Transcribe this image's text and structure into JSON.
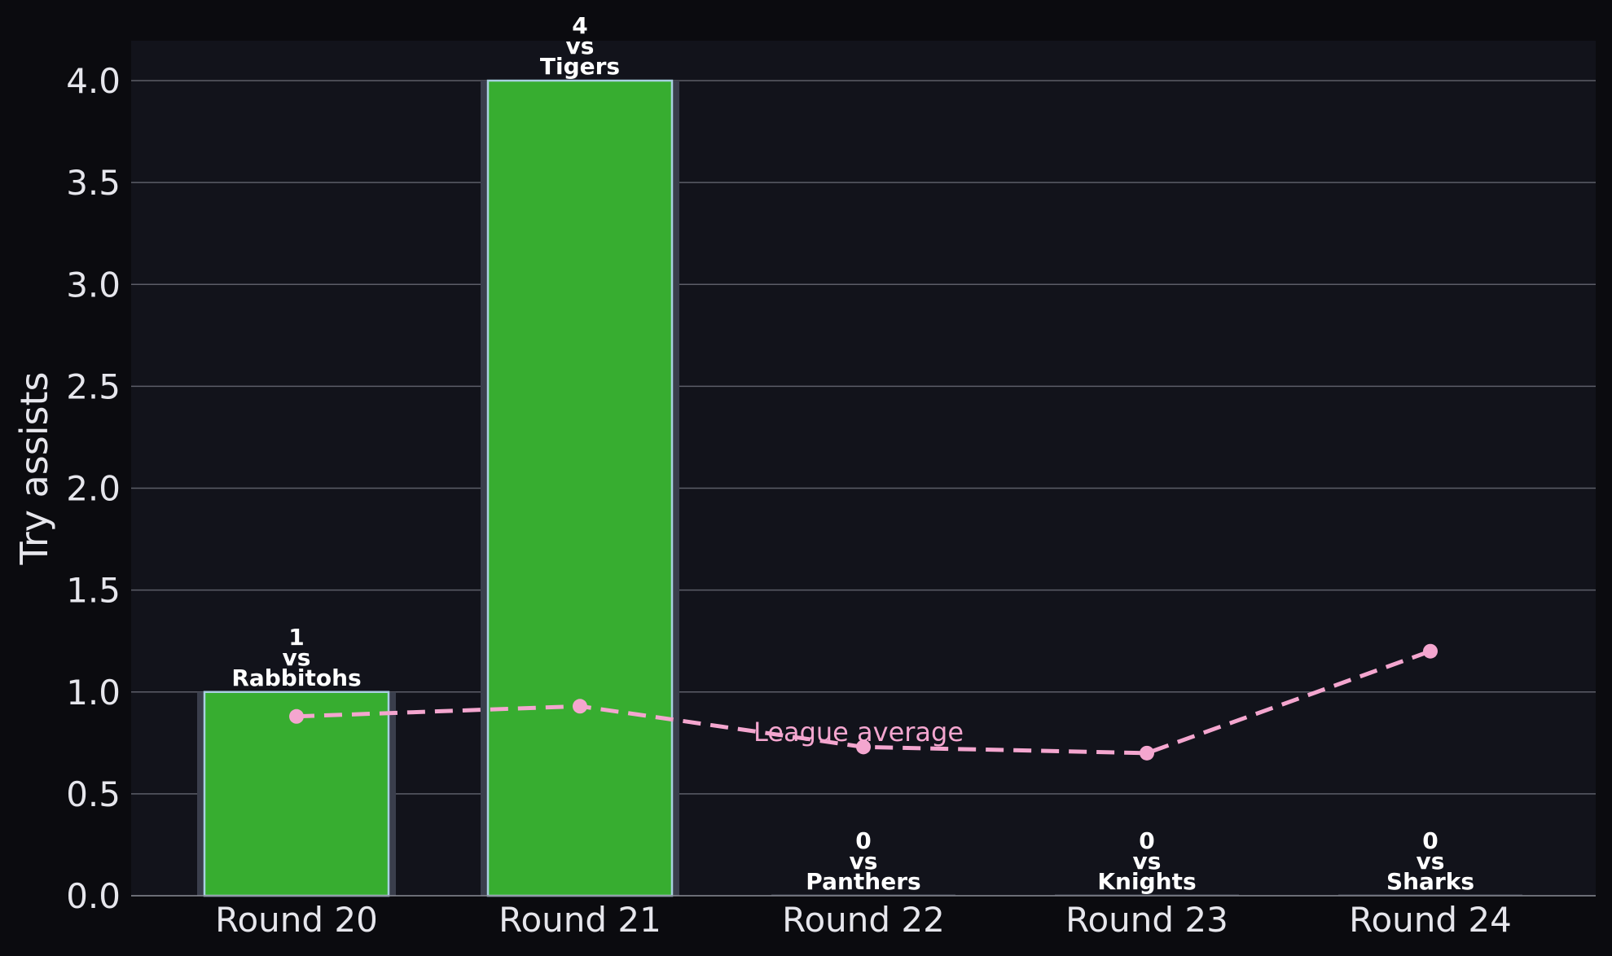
{
  "chart_data": {
    "type": "bar",
    "categories": [
      "Round 20",
      "Round 21",
      "Round 22",
      "Round 23",
      "Round 24"
    ],
    "values": [
      1,
      4,
      0,
      0,
      0
    ],
    "opponents": [
      "Rabbitohs",
      "Tigers",
      "Panthers",
      "Knights",
      "Sharks"
    ],
    "bar_label_connector": "vs",
    "series": [
      {
        "name": "Try assists",
        "values": [
          1,
          4,
          0,
          0,
          0
        ]
      },
      {
        "name": "League average",
        "values": [
          0.88,
          0.93,
          0.73,
          0.7,
          1.2
        ]
      }
    ],
    "ylabel": "Try assists",
    "xlabel": "",
    "title": "",
    "ylim": [
      0,
      4.2
    ],
    "yticks": [
      "0.0",
      "0.5",
      "1.0",
      "1.5",
      "2.0",
      "2.5",
      "3.0",
      "3.5",
      "4.0"
    ],
    "grid": "horizontal",
    "annotation": "League average"
  },
  "colors": {
    "background": "#0b0b0f",
    "plot_background": "#12131b",
    "bar": "#37ad30",
    "bar_edge": "#a9cfe0",
    "bar_halo": "#3a3e4c",
    "average_line": "#f4a6cf",
    "grid": "#5c5e68",
    "text": "#e6e6ec"
  }
}
